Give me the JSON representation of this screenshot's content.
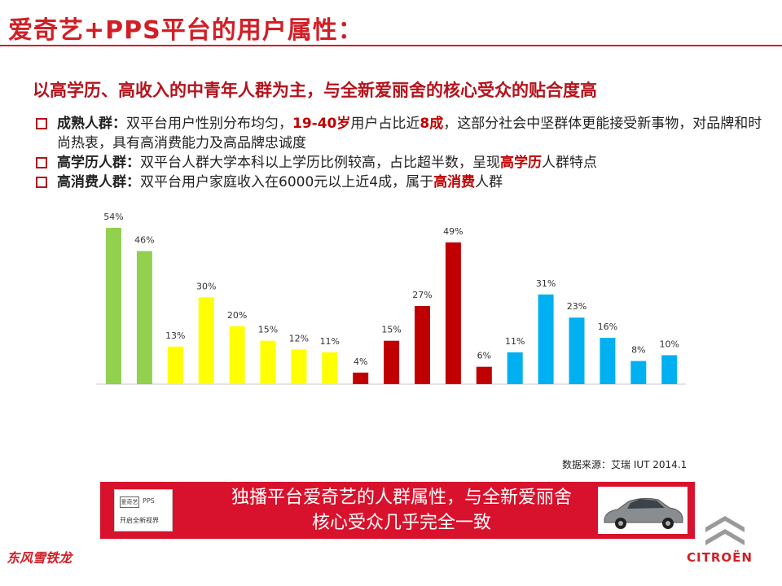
{
  "title": "爱奇艺+PPS平台的用户属性：",
  "subtitle": "以高学历、高收入的中青年人群为主，与全新爱丽舍的核心受众的贴合度高",
  "bullets": [
    {
      "label": "成熟人群：",
      "text_a": "双平台用户性别分布均匀，",
      "hl_a": "19-40岁",
      "text_b": "用户占比近",
      "hl_b": "8成",
      "text_c": "，这部分社会中坚群体更能接受新事物，对品牌和时尚热衷，具有高消费能力及高品牌忠诚度"
    },
    {
      "label": "高学历人群：",
      "text_a": "双平台人群大学本科以上学历比例较高，占比超半数，呈现",
      "hl_a": "高学历",
      "text_b": "人群特点"
    },
    {
      "label": "高消费人群：",
      "text_a": "双平台用户家庭收入在6000元以上近4成，属于",
      "hl_a": "高消费",
      "text_b": "人群"
    }
  ],
  "chart_data": {
    "type": "bar",
    "values": [
      54,
      46,
      13,
      30,
      20,
      15,
      12,
      11,
      4,
      15,
      27,
      49,
      6,
      11,
      31,
      23,
      16,
      8,
      10
    ],
    "labels": [
      "54%",
      "46%",
      "13%",
      "30%",
      "20%",
      "15%",
      "12%",
      "11%",
      "4%",
      "15%",
      "27%",
      "49%",
      "6%",
      "11%",
      "31%",
      "23%",
      "16%",
      "8%",
      "10%"
    ],
    "colors": [
      "#92d050",
      "#92d050",
      "#ffff00",
      "#ffff00",
      "#ffff00",
      "#ffff00",
      "#ffff00",
      "#ffff00",
      "#c00000",
      "#c00000",
      "#c00000",
      "#c00000",
      "#c00000",
      "#00b0f0",
      "#00b0f0",
      "#00b0f0",
      "#00b0f0",
      "#00b0f0",
      "#00b0f0"
    ],
    "ylim": [
      0,
      54
    ]
  },
  "source": "数据来源：艾瑞 IUT 2014.1",
  "banner": {
    "line1": "独播平台爱奇艺的人群属性，与全新爱丽舍",
    "line2": "核心受众几乎完全一致",
    "logo_left": "爱奇艺",
    "logo_right": "PPS",
    "logo_slogan": "开启全新视界"
  },
  "footer": {
    "brand_left": "东风雪铁龙",
    "brand_right": "CITROËN"
  },
  "colors": {
    "accent": "#d11f26",
    "banner": "#d8122c"
  }
}
